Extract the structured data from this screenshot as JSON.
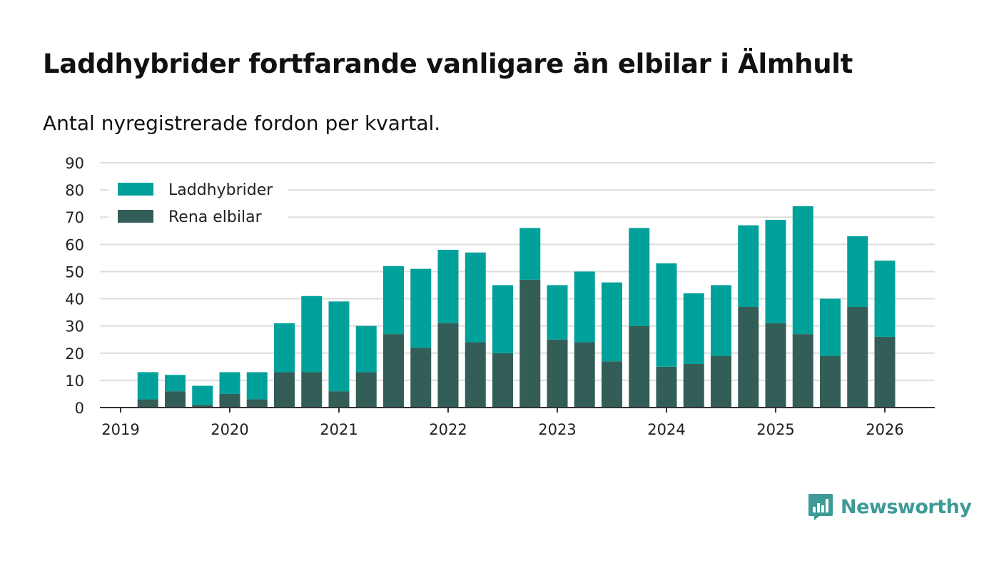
{
  "title": "Laddhybrider fortfarande vanligare än elbilar i Älmhult",
  "subtitle": "Antal nyregistrerade fordon per kvartal.",
  "brand": "Newsworthy",
  "colors": {
    "laddhybrider": "#00a19a",
    "rena_elbilar": "#335e57",
    "axis": "#333333",
    "grid": "#dddddd",
    "brand": "#3e9a96"
  },
  "chart_data": {
    "type": "bar",
    "stacked": true,
    "xlabel": "",
    "ylabel": "",
    "ylim": [
      0,
      90
    ],
    "yticks": [
      0,
      10,
      20,
      30,
      40,
      50,
      60,
      70,
      80,
      90
    ],
    "xticks": [
      "2019",
      "2020",
      "2021",
      "2022",
      "2023",
      "2024",
      "2025",
      "2026"
    ],
    "grid": true,
    "legend_position": "top-left",
    "categories": [
      "2019 Q1",
      "2019 Q2",
      "2019 Q3",
      "2019 Q4",
      "2020 Q1",
      "2020 Q2",
      "2020 Q3",
      "2020 Q4",
      "2021 Q1",
      "2021 Q2",
      "2021 Q3",
      "2021 Q4",
      "2022 Q1",
      "2022 Q2",
      "2022 Q3",
      "2022 Q4",
      "2023 Q1",
      "2023 Q2",
      "2023 Q3",
      "2023 Q4",
      "2024 Q1",
      "2024 Q2",
      "2024 Q3",
      "2024 Q4",
      "2025 Q1",
      "2025 Q2",
      "2025 Q3",
      "2025 Q4",
      "2026 Q1"
    ],
    "series": [
      {
        "name": "Rena elbilar",
        "color": "#335e57",
        "values": [
          3,
          6,
          1,
          5,
          3,
          13,
          13,
          6,
          13,
          27,
          22,
          31,
          24,
          20,
          47,
          25,
          24,
          17,
          30,
          15,
          16,
          19,
          37,
          31,
          27,
          19,
          37,
          26,
          0
        ]
      },
      {
        "name": "Laddhybrider",
        "color": "#00a19a",
        "values": [
          10,
          6,
          7,
          8,
          10,
          18,
          28,
          33,
          17,
          25,
          29,
          27,
          33,
          25,
          19,
          20,
          26,
          29,
          36,
          38,
          26,
          26,
          30,
          38,
          47,
          21,
          26,
          28,
          0
        ]
      }
    ],
    "legend": [
      "Laddhybrider",
      "Rena elbilar"
    ]
  }
}
